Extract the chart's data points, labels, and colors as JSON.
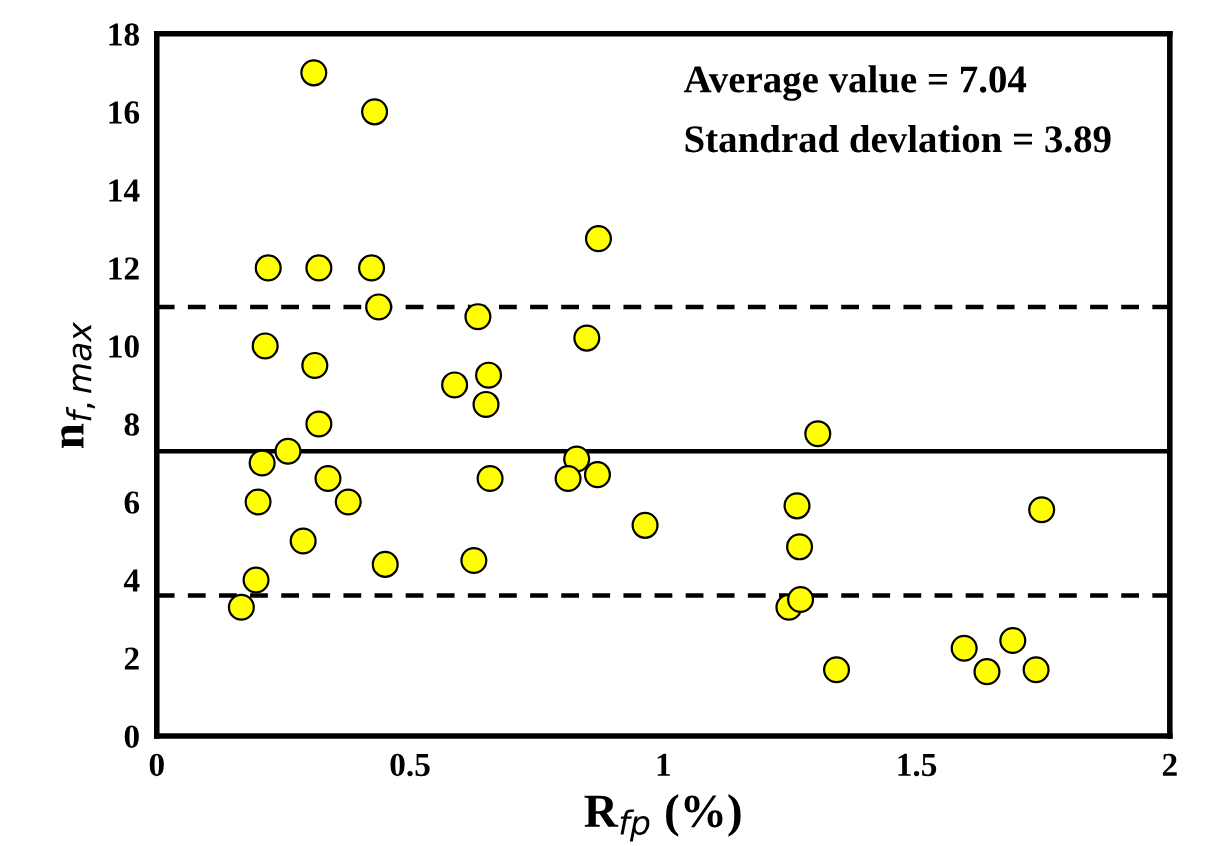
{
  "chart_data": {
    "type": "scatter",
    "xlabel": "R$_{fp}$ (%)",
    "ylabel": "n$_{f,max}$",
    "x": [
      0.31,
      0.43,
      0.872,
      0.22,
      0.32,
      0.424,
      0.438,
      0.634,
      0.214,
      0.849,
      0.312,
      0.588,
      0.655,
      0.65,
      0.32,
      0.259,
      0.208,
      0.829,
      0.338,
      0.658,
      0.812,
      0.87,
      0.2,
      0.378,
      0.964,
      0.289,
      0.451,
      0.626,
      0.196,
      0.167,
      1.305,
      1.264,
      1.269,
      1.248,
      1.271,
      1.342,
      1.594,
      1.639,
      1.69,
      1.736,
      1.747
    ],
    "values": [
      17,
      16,
      12.75,
      12,
      12,
      12,
      11,
      10.75,
      10,
      10.2,
      9.5,
      9,
      9.25,
      8.5,
      8,
      7.3,
      7,
      7.1,
      6.6,
      6.6,
      6.6,
      6.7,
      6,
      6,
      5.4,
      5,
      4.4,
      4.5,
      4,
      3.3,
      7.75,
      5.9,
      4.85,
      3.3,
      3.5,
      1.7,
      2.25,
      1.65,
      2.45,
      1.7,
      5.8
    ],
    "color": "#ffff00",
    "marker": "circle",
    "grid": false,
    "xlim": [
      0,
      2
    ],
    "ylim": [
      0,
      18
    ],
    "xticks": [
      0,
      0.5,
      1,
      1.5,
      2
    ],
    "yticks": [
      0,
      2,
      4,
      6,
      8,
      10,
      12,
      14,
      16,
      18
    ],
    "ref_lines": [
      {
        "axis": "y",
        "value": 7.3,
        "line_style": "solid",
        "color": "#000000"
      },
      {
        "axis": "y",
        "value": 11,
        "line_style": "dashed",
        "color": "#000000"
      },
      {
        "axis": "y",
        "value": 3.6,
        "line_style": "dashed",
        "color": "#000000"
      }
    ],
    "annotations": [
      "Average value = 7.04",
      "Standrad devlation = 3.89"
    ]
  }
}
